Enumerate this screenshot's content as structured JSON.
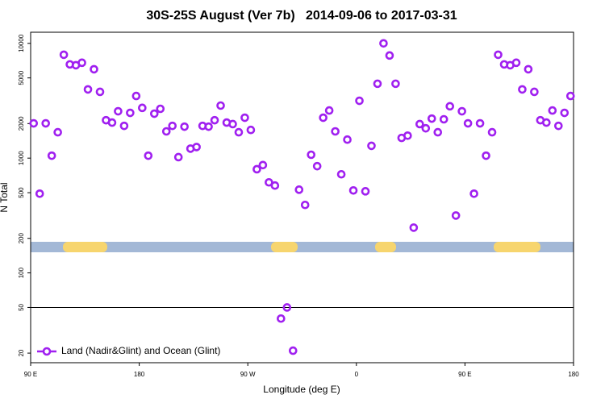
{
  "chart_data": {
    "type": "scatter",
    "title": "30S-25S August (Ver 7b)   2014-09-06 to 2017-03-31",
    "x_label": "Longitude (deg E)",
    "y_label": "N Total",
    "log_y": true,
    "legend_position": "bottom-left",
    "reference_line": 50,
    "xlim": [
      90,
      540
    ],
    "ylim": [
      16.5,
      12500
    ],
    "xticks": [
      {
        "value": 90,
        "label": "90 E"
      },
      180,
      {
        "value": 270,
        "label": "90 W"
      },
      {
        "value": 360,
        "label": "0"
      },
      {
        "value": 450,
        "label": "90 E"
      },
      {
        "value": 540,
        "label": "180"
      }
    ],
    "yticks": [
      20,
      50,
      100,
      200,
      500,
      1000,
      2000,
      5000,
      10000
    ],
    "x": [
      92.5,
      97.5,
      102.5,
      107.5,
      112.5,
      117.5,
      122.5,
      127.5,
      132.5,
      137.5,
      142.5,
      147.5,
      152.5,
      157.5,
      162.5,
      167.5,
      172.5,
      177.5,
      182.5,
      187.5,
      192.5,
      197.5,
      202.5,
      207.5,
      212.5,
      217.5,
      222.5,
      227.5,
      232.5,
      237.5,
      242.5,
      247.5,
      252.5,
      257.5,
      262.5,
      267.5,
      272.5,
      277.5,
      282.5,
      287.5,
      292.5,
      297.5,
      302.5,
      307.5,
      312.5,
      317.5,
      322.5,
      327.5,
      332.5,
      337.5,
      342.5,
      347.5,
      352.5,
      357.5,
      362.5,
      367.5,
      372.5,
      377.5,
      382.5,
      387.5,
      392.5,
      397.5,
      402.5,
      407.5,
      412.5,
      417.5,
      422.5,
      427.5,
      432.5,
      437.5,
      442.5,
      447.5,
      452.5,
      457.5,
      462.5,
      467.5,
      472.5,
      477.5,
      482.5,
      487.5,
      492.5,
      497.5,
      502.5,
      507.5,
      512.5,
      517.5,
      522.5,
      527.5,
      532.5,
      537.5
    ],
    "series": [
      {
        "name": "Land (Nadir&Glint) and Ocean (Glint)",
        "color": "#a020f0",
        "values": [
          2010,
          490,
          2010,
          1050,
          1680,
          7960,
          6560,
          6450,
          6780,
          3970,
          5950,
          3780,
          2140,
          2040,
          2560,
          1910,
          2480,
          3480,
          2740,
          1050,
          2440,
          2690,
          1710,
          1910,
          1020,
          1880,
          1210,
          1250,
          1910,
          1880,
          2140,
          2870,
          2040,
          1980,
          1680,
          2250,
          1760,
          800,
          870,
          615,
          577,
          40,
          50,
          21,
          531,
          391,
          1070,
          851,
          2250,
          2600,
          1710,
          723,
          1450,
          523,
          3160,
          514,
          1280,
          4450,
          10000,
          7840,
          4450,
          1500,
          1570,
          248,
          1980,
          1820,
          2210,
          1680,
          2180,
          2830,
          316,
          2560,
          2010,
          490,
          2010,
          1050,
          1680,
          7960,
          6560,
          6450,
          6780,
          3970,
          5950,
          3780,
          2140,
          2040,
          2600,
          1910,
          2480,
          3480
        ]
      }
    ]
  }
}
